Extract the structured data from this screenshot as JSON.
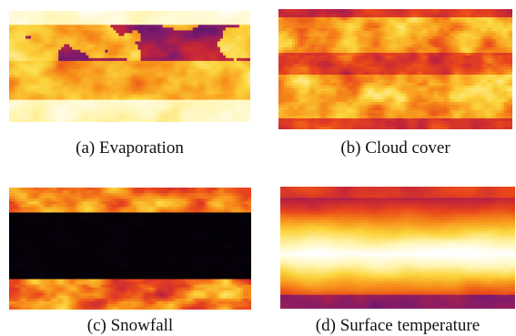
{
  "figure": {
    "panels": [
      {
        "id": "a",
        "caption": "(a) Evaporation"
      },
      {
        "id": "b",
        "caption": "(b) Cloud cover"
      },
      {
        "id": "c",
        "caption": "(c) Snowfall"
      },
      {
        "id": "d",
        "caption": "(d) Surface temperature"
      }
    ]
  },
  "colormap": {
    "name": "hot-inferno-like",
    "stops": [
      "#000000",
      "#3a0e5a",
      "#7a1a6e",
      "#c0233c",
      "#e8451c",
      "#f7901a",
      "#fbd33a",
      "#fff5b0",
      "#ffffff"
    ]
  }
}
